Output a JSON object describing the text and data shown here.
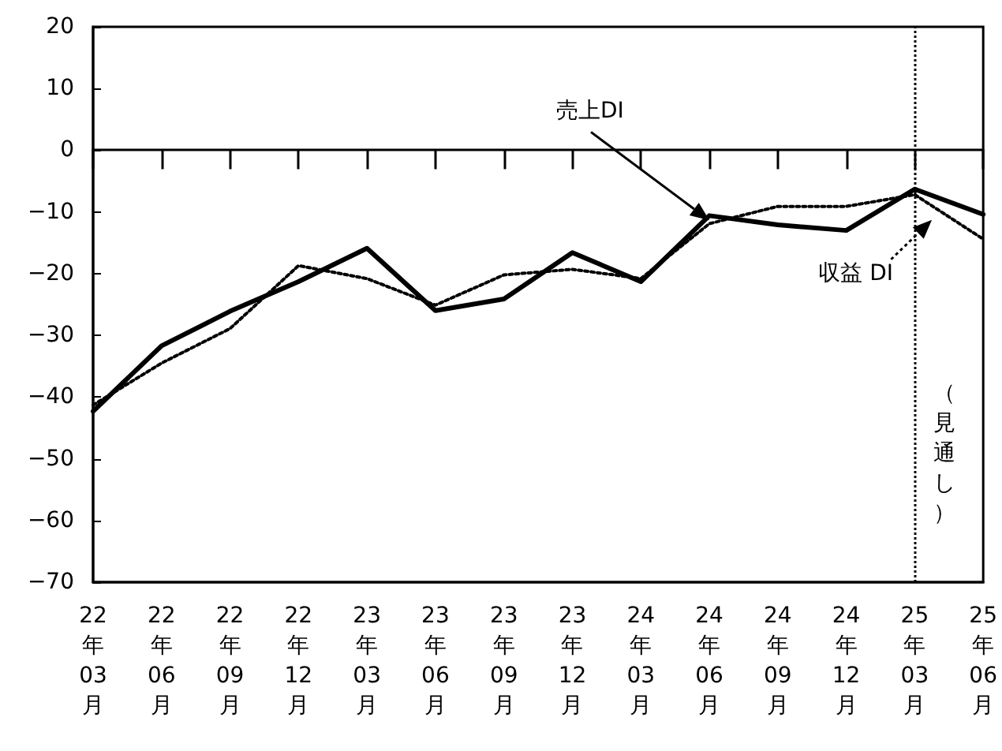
{
  "chart_data": {
    "type": "line",
    "categories": [
      "22年03月",
      "22年06月",
      "22年09月",
      "22年12月",
      "23年03月",
      "23年06月",
      "23年09月",
      "23年12月",
      "24年03月",
      "24年06月",
      "24年09月",
      "24年12月",
      "25年03月",
      "25年06月"
    ],
    "series": [
      {
        "name": "売上DI",
        "color": "#000000",
        "line_style": "solid",
        "values": [
          -42.3,
          -31.7,
          -26.1,
          -21.3,
          -15.9,
          -26.0,
          -24.1,
          -16.6,
          -21.3,
          -10.6,
          -12.1,
          -13.0,
          -6.3,
          -10.4
        ]
      },
      {
        "name": "収益 DI",
        "color": "#000000",
        "line_style": "dotted",
        "values": [
          -41.3,
          -34.5,
          -28.9,
          -18.7,
          -20.8,
          -25.1,
          -20.2,
          -19.3,
          -20.8,
          -11.9,
          -9.1,
          -9.1,
          -7.2,
          -14.4
        ]
      }
    ],
    "ylim": [
      -70,
      20
    ],
    "yticks": [
      -70,
      -60,
      -50,
      -40,
      -30,
      -20,
      -10,
      0,
      10,
      20
    ],
    "grid": false,
    "legend": "right",
    "marker": "none",
    "ref_lines": [
      {
        "axis": "x",
        "value": "25年03月",
        "label": "（見通し）",
        "line_style": "dotted",
        "color": "#000000"
      }
    ]
  }
}
